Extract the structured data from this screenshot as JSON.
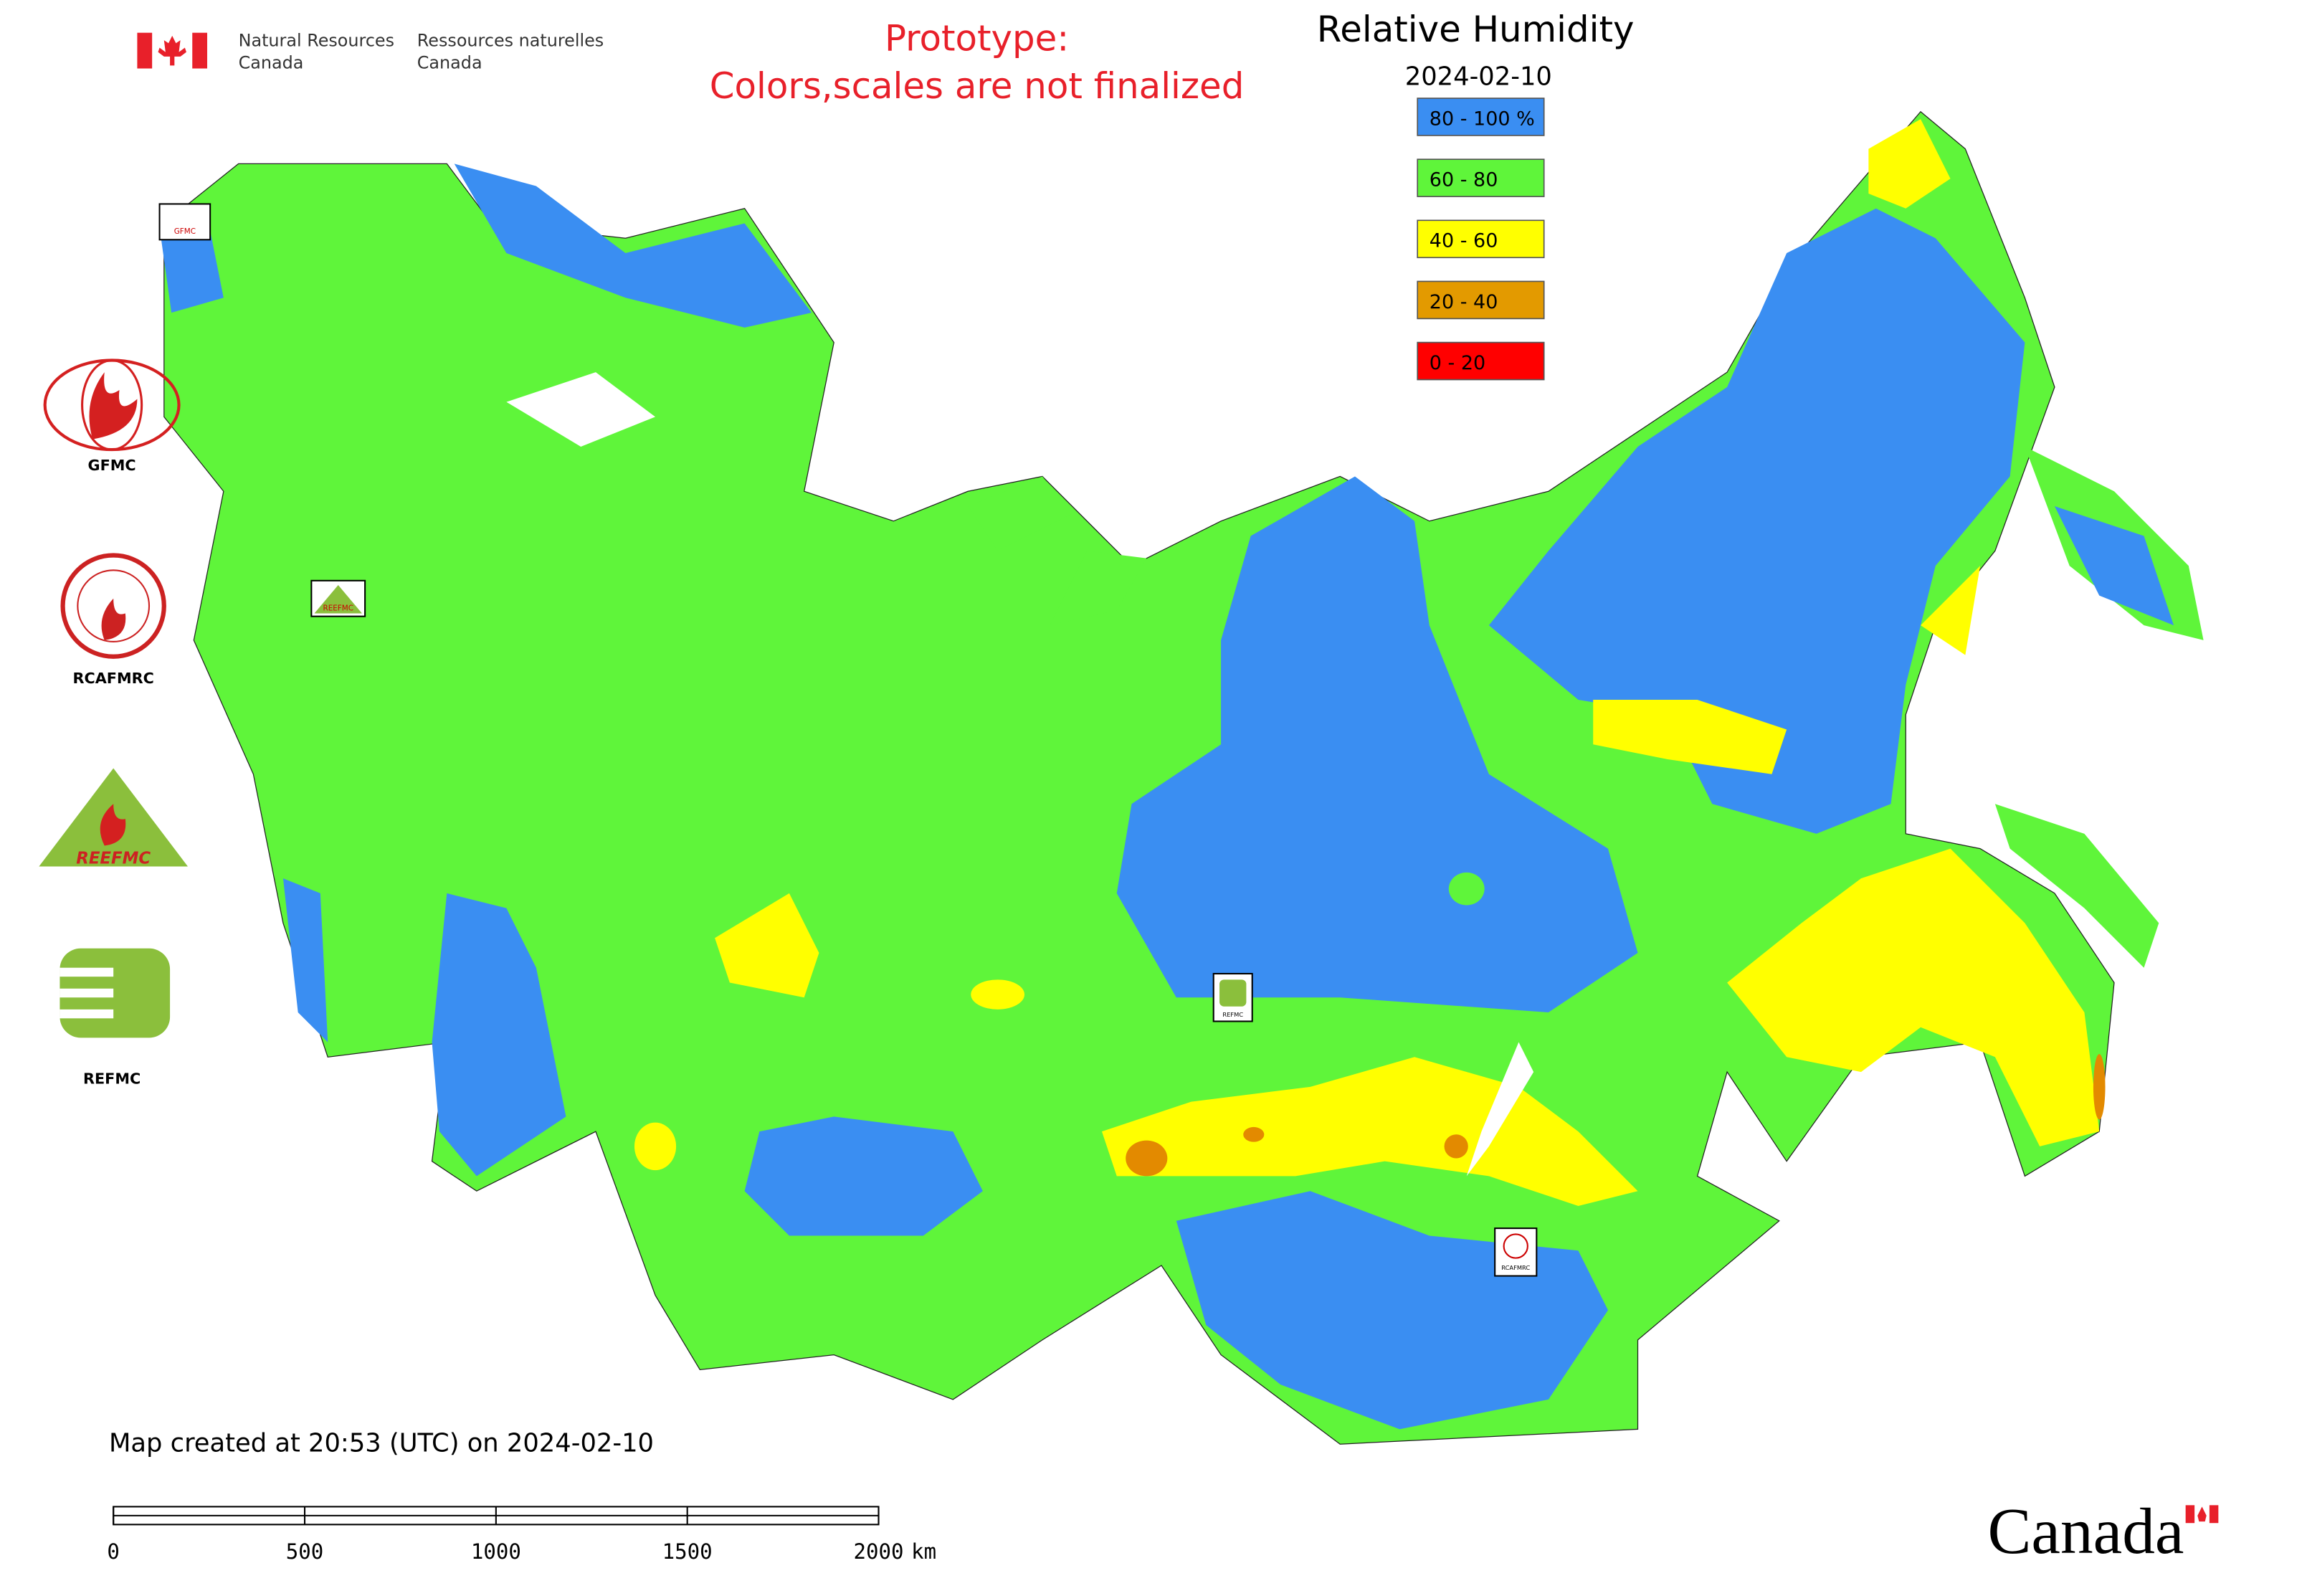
{
  "header": {
    "agency_en": [
      "Natural Resources",
      "Canada"
    ],
    "agency_fr": [
      "Ressources naturelles",
      "Canada"
    ],
    "notice": [
      "Prototype:",
      "Colors,scales are not finalized"
    ]
  },
  "legend": {
    "title": "Relative Humidity",
    "date": "2024-02-10",
    "items": [
      {
        "label": "80 - 100 %",
        "color": "#3a8ef2"
      },
      {
        "label": "60 - 80",
        "color": "#5ff53a"
      },
      {
        "label": "40 - 60",
        "color": "#ffff00"
      },
      {
        "label": "20 - 40",
        "color": "#e39a00"
      },
      {
        "label": "0 - 20",
        "color": "#ff0000"
      }
    ]
  },
  "logos": {
    "gfmc": "GFMC",
    "rcafmrc": "RCAFMRC",
    "reefmc": "REEFMC",
    "refmc": "REFMC"
  },
  "footer": {
    "created": "Map created at 20:53 (UTC) on 2024-02-10",
    "scale": {
      "ticks": [
        0,
        500,
        1000,
        1500,
        2000
      ],
      "unit": "km"
    },
    "wordmark": "Canada"
  }
}
